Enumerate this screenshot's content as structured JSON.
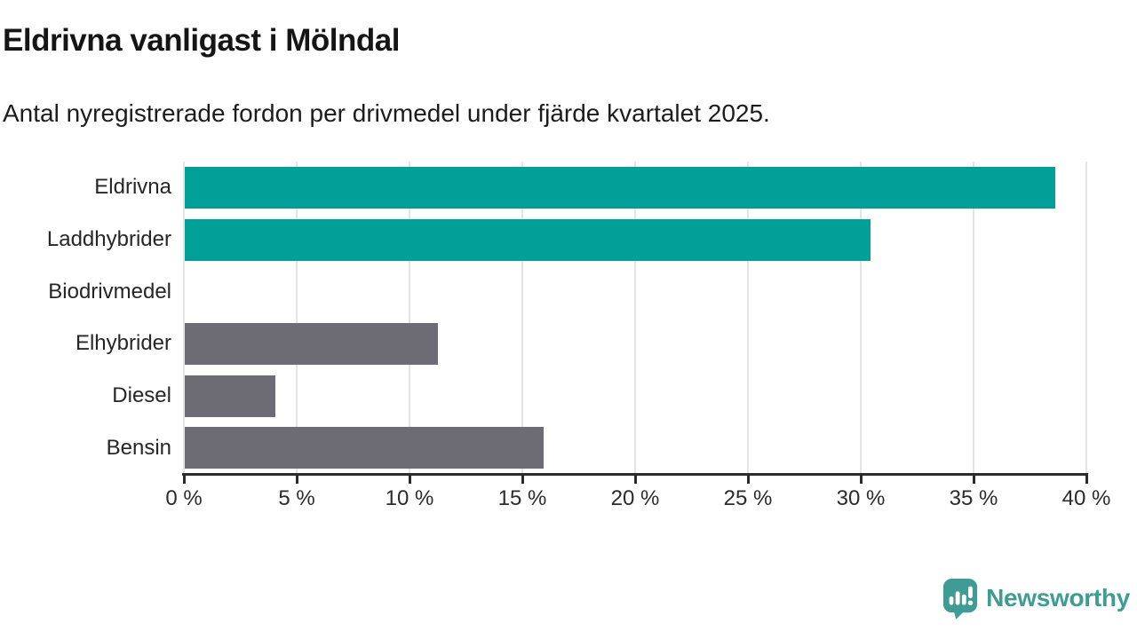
{
  "header": {
    "title": "Eldrivna vanligast i Mölndal",
    "subtitle": "Antal nyregistrerade fordon per drivmedel under fjärde kvartalet 2025."
  },
  "chart_data": {
    "type": "bar",
    "orientation": "horizontal",
    "title": "Eldrivna vanligast i Mölndal",
    "subtitle": "Antal nyregistrerade fordon per drivmedel under fjärde kvartalet 2025.",
    "categories": [
      "Eldrivna",
      "Laddhybrider",
      "Biodrivmedel",
      "Elhybrider",
      "Diesel",
      "Bensin"
    ],
    "values": [
      38.6,
      30.4,
      0,
      11.2,
      4.0,
      15.9
    ],
    "unit": "%",
    "xlim": [
      0,
      40
    ],
    "xticks": [
      0,
      5,
      10,
      15,
      20,
      25,
      30,
      35,
      40
    ],
    "tick_suffix": " %",
    "bar_colors": [
      "#00a099",
      "#00a099",
      "#6d6c75",
      "#6d6c75",
      "#6d6c75",
      "#6d6c75"
    ],
    "highlight_color": "#00a099",
    "base_color": "#6d6c75",
    "grid": true,
    "legend": "none"
  },
  "footer": {
    "brand": "Newsworthy",
    "brand_color": "#3e9c94"
  }
}
